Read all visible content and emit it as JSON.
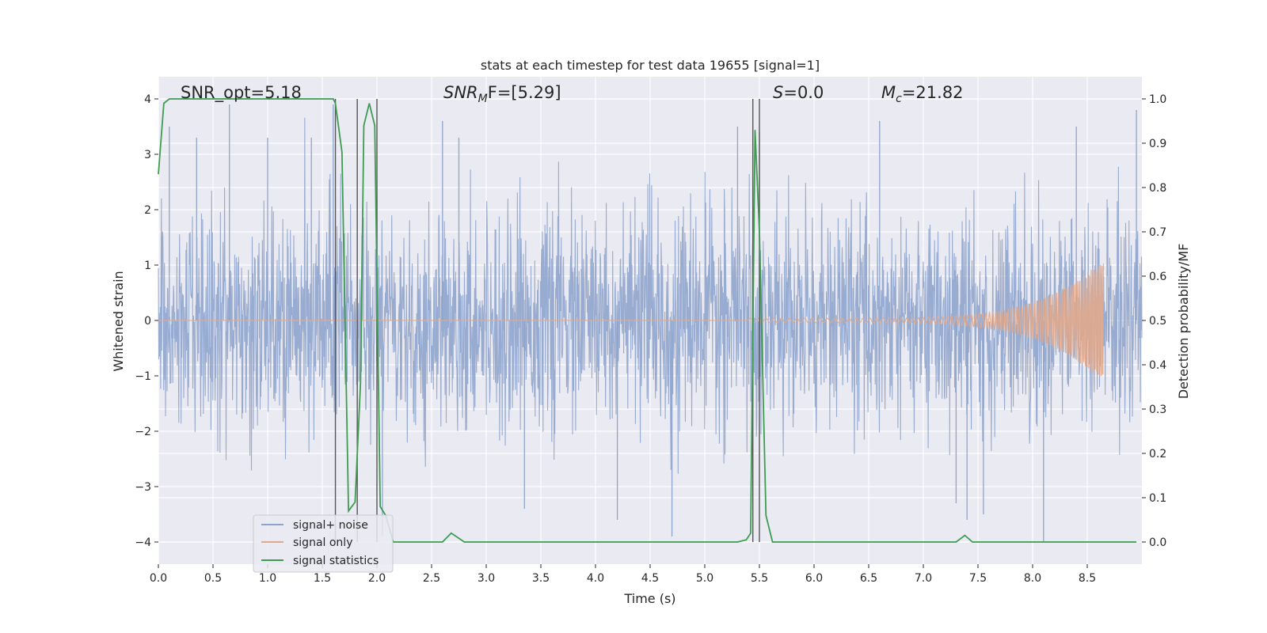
{
  "chart_data": {
    "type": "line",
    "title": "stats at each timestep for test data 19655 [signal=1]",
    "xlabel": "Time (s)",
    "ylabel_left": "Whitened strain",
    "ylabel_right": "Detection probability/MF",
    "xlim": [
      0,
      9.0
    ],
    "ylim_left": [
      -4.4,
      4.4
    ],
    "ylim_right": [
      -0.05,
      1.05
    ],
    "x_ticks": [
      "0.0",
      "0.5",
      "1.0",
      "1.5",
      "2.0",
      "2.5",
      "3.0",
      "3.5",
      "4.0",
      "4.5",
      "5.0",
      "5.5",
      "6.0",
      "6.5",
      "7.0",
      "7.5",
      "8.0",
      "8.5"
    ],
    "y_left_ticks": [
      "4",
      "3",
      "2",
      "1",
      "0",
      "−1",
      "−2",
      "−3",
      "−4"
    ],
    "y_right_ticks": [
      "1.0",
      "0.9",
      "0.8",
      "0.7",
      "0.6",
      "0.5",
      "0.4",
      "0.3",
      "0.2",
      "0.1",
      "0.0"
    ],
    "grid": true,
    "legend_position": "lower-left",
    "annotations": {
      "snr_opt": "SNR_opt=5.18",
      "snr_mf_label": "SNR",
      "snr_mf_sub": "M",
      "snr_mf_rest": "F=[5.29]",
      "s_label": "S",
      "s_value": "=0.0",
      "mc_label": "M",
      "mc_sub": "c",
      "mc_value": "=21.82"
    },
    "series": [
      {
        "name": "signal+ noise",
        "color": "#8fa4cc",
        "axis": "left",
        "noise_std": 0.95,
        "spike_times": [
          0.1,
          0.35,
          0.65,
          1.0,
          1.4,
          1.6,
          2.05,
          2.6,
          2.75,
          3.35,
          4.2,
          4.7,
          5.3,
          5.5,
          6.6,
          7.3,
          7.4,
          7.55,
          8.1,
          8.4,
          8.95
        ],
        "spike_values": [
          3.5,
          3.3,
          3.9,
          3.3,
          3.3,
          3.9,
          -3.9,
          3.6,
          3.3,
          -3.4,
          -3.6,
          -3.9,
          3.5,
          3.4,
          3.6,
          -3.3,
          -3.6,
          -3.5,
          -4.0,
          3.5,
          3.8
        ]
      },
      {
        "name": "signal only",
        "color": "#e0a88c",
        "axis": "left",
        "chirp_start": 5.4,
        "chirp_end": 8.65,
        "chirp_peak_amplitude": 1.1
      },
      {
        "name": "signal statistics",
        "color": "#3d9c51",
        "axis": "right",
        "x": [
          0.0,
          0.05,
          0.1,
          0.2,
          0.5,
          1.0,
          1.5,
          1.6,
          1.62,
          1.68,
          1.74,
          1.8,
          1.85,
          1.88,
          1.93,
          1.98,
          2.03,
          2.08,
          2.15,
          2.5,
          2.6,
          2.68,
          2.8,
          3.5,
          4.5,
          5.0,
          5.3,
          5.38,
          5.42,
          5.46,
          5.5,
          5.56,
          5.62,
          5.7,
          6.5,
          7.0,
          7.3,
          7.38,
          7.45,
          7.55,
          8.0,
          8.5,
          8.95
        ],
        "values": [
          0.83,
          0.99,
          1.0,
          1.0,
          1.0,
          1.0,
          1.0,
          1.0,
          0.99,
          0.88,
          0.07,
          0.09,
          0.36,
          0.94,
          0.99,
          0.94,
          0.08,
          0.06,
          0.0,
          0.0,
          0.0,
          0.02,
          0.0,
          0.0,
          0.0,
          0.0,
          0.0,
          0.005,
          0.02,
          0.93,
          0.7,
          0.06,
          0.0,
          0.0,
          0.0,
          0.0,
          0.0,
          0.015,
          0.0,
          0.0,
          0.0,
          0.0,
          0.0
        ]
      }
    ],
    "vertical_markers": [
      1.62,
      1.82,
      2.0,
      5.44,
      5.5
    ]
  }
}
